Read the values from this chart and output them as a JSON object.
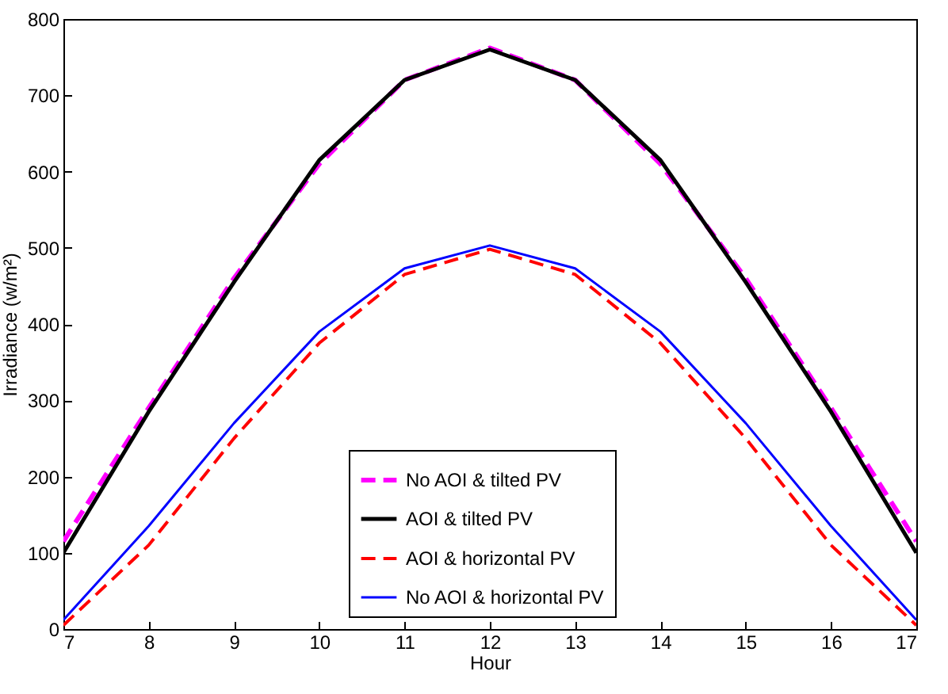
{
  "chart_data": {
    "type": "line",
    "xlabel": "Hour",
    "ylabel": "Irradiance (w/m²)",
    "x": [
      7,
      8,
      9,
      10,
      11,
      12,
      13,
      14,
      15,
      16,
      17
    ],
    "series": [
      {
        "name": "No AOI & tilted PV",
        "color": "#ff00ff",
        "line_style": "dashed",
        "values": [
          115,
          290,
          460,
          610,
          720,
          762,
          720,
          610,
          460,
          290,
          115
        ]
      },
      {
        "name": "AOI & tilted PV",
        "color": "#000000",
        "line_style": "solid",
        "values": [
          100,
          285,
          455,
          615,
          720,
          760,
          720,
          615,
          455,
          285,
          100
        ]
      },
      {
        "name": "AOI & horizontal PV",
        "color": "#ff0000",
        "line_style": "dashed",
        "values": [
          5,
          110,
          250,
          375,
          465,
          498,
          465,
          375,
          250,
          110,
          5
        ]
      },
      {
        "name": "No AOI & horizontal PV",
        "color": "#0000ff",
        "line_style": "solid",
        "values": [
          12,
          135,
          270,
          390,
          473,
          503,
          473,
          390,
          270,
          135,
          12
        ]
      }
    ],
    "xlim": [
      7,
      17
    ],
    "xticks": [
      7,
      8,
      9,
      10,
      11,
      12,
      13,
      14,
      15,
      16,
      17
    ],
    "ylim": [
      0,
      800
    ],
    "yticks": [
      0,
      100,
      200,
      300,
      400,
      500,
      600,
      700,
      800
    ],
    "grid": false,
    "legend": "bottom",
    "marker": "none"
  }
}
